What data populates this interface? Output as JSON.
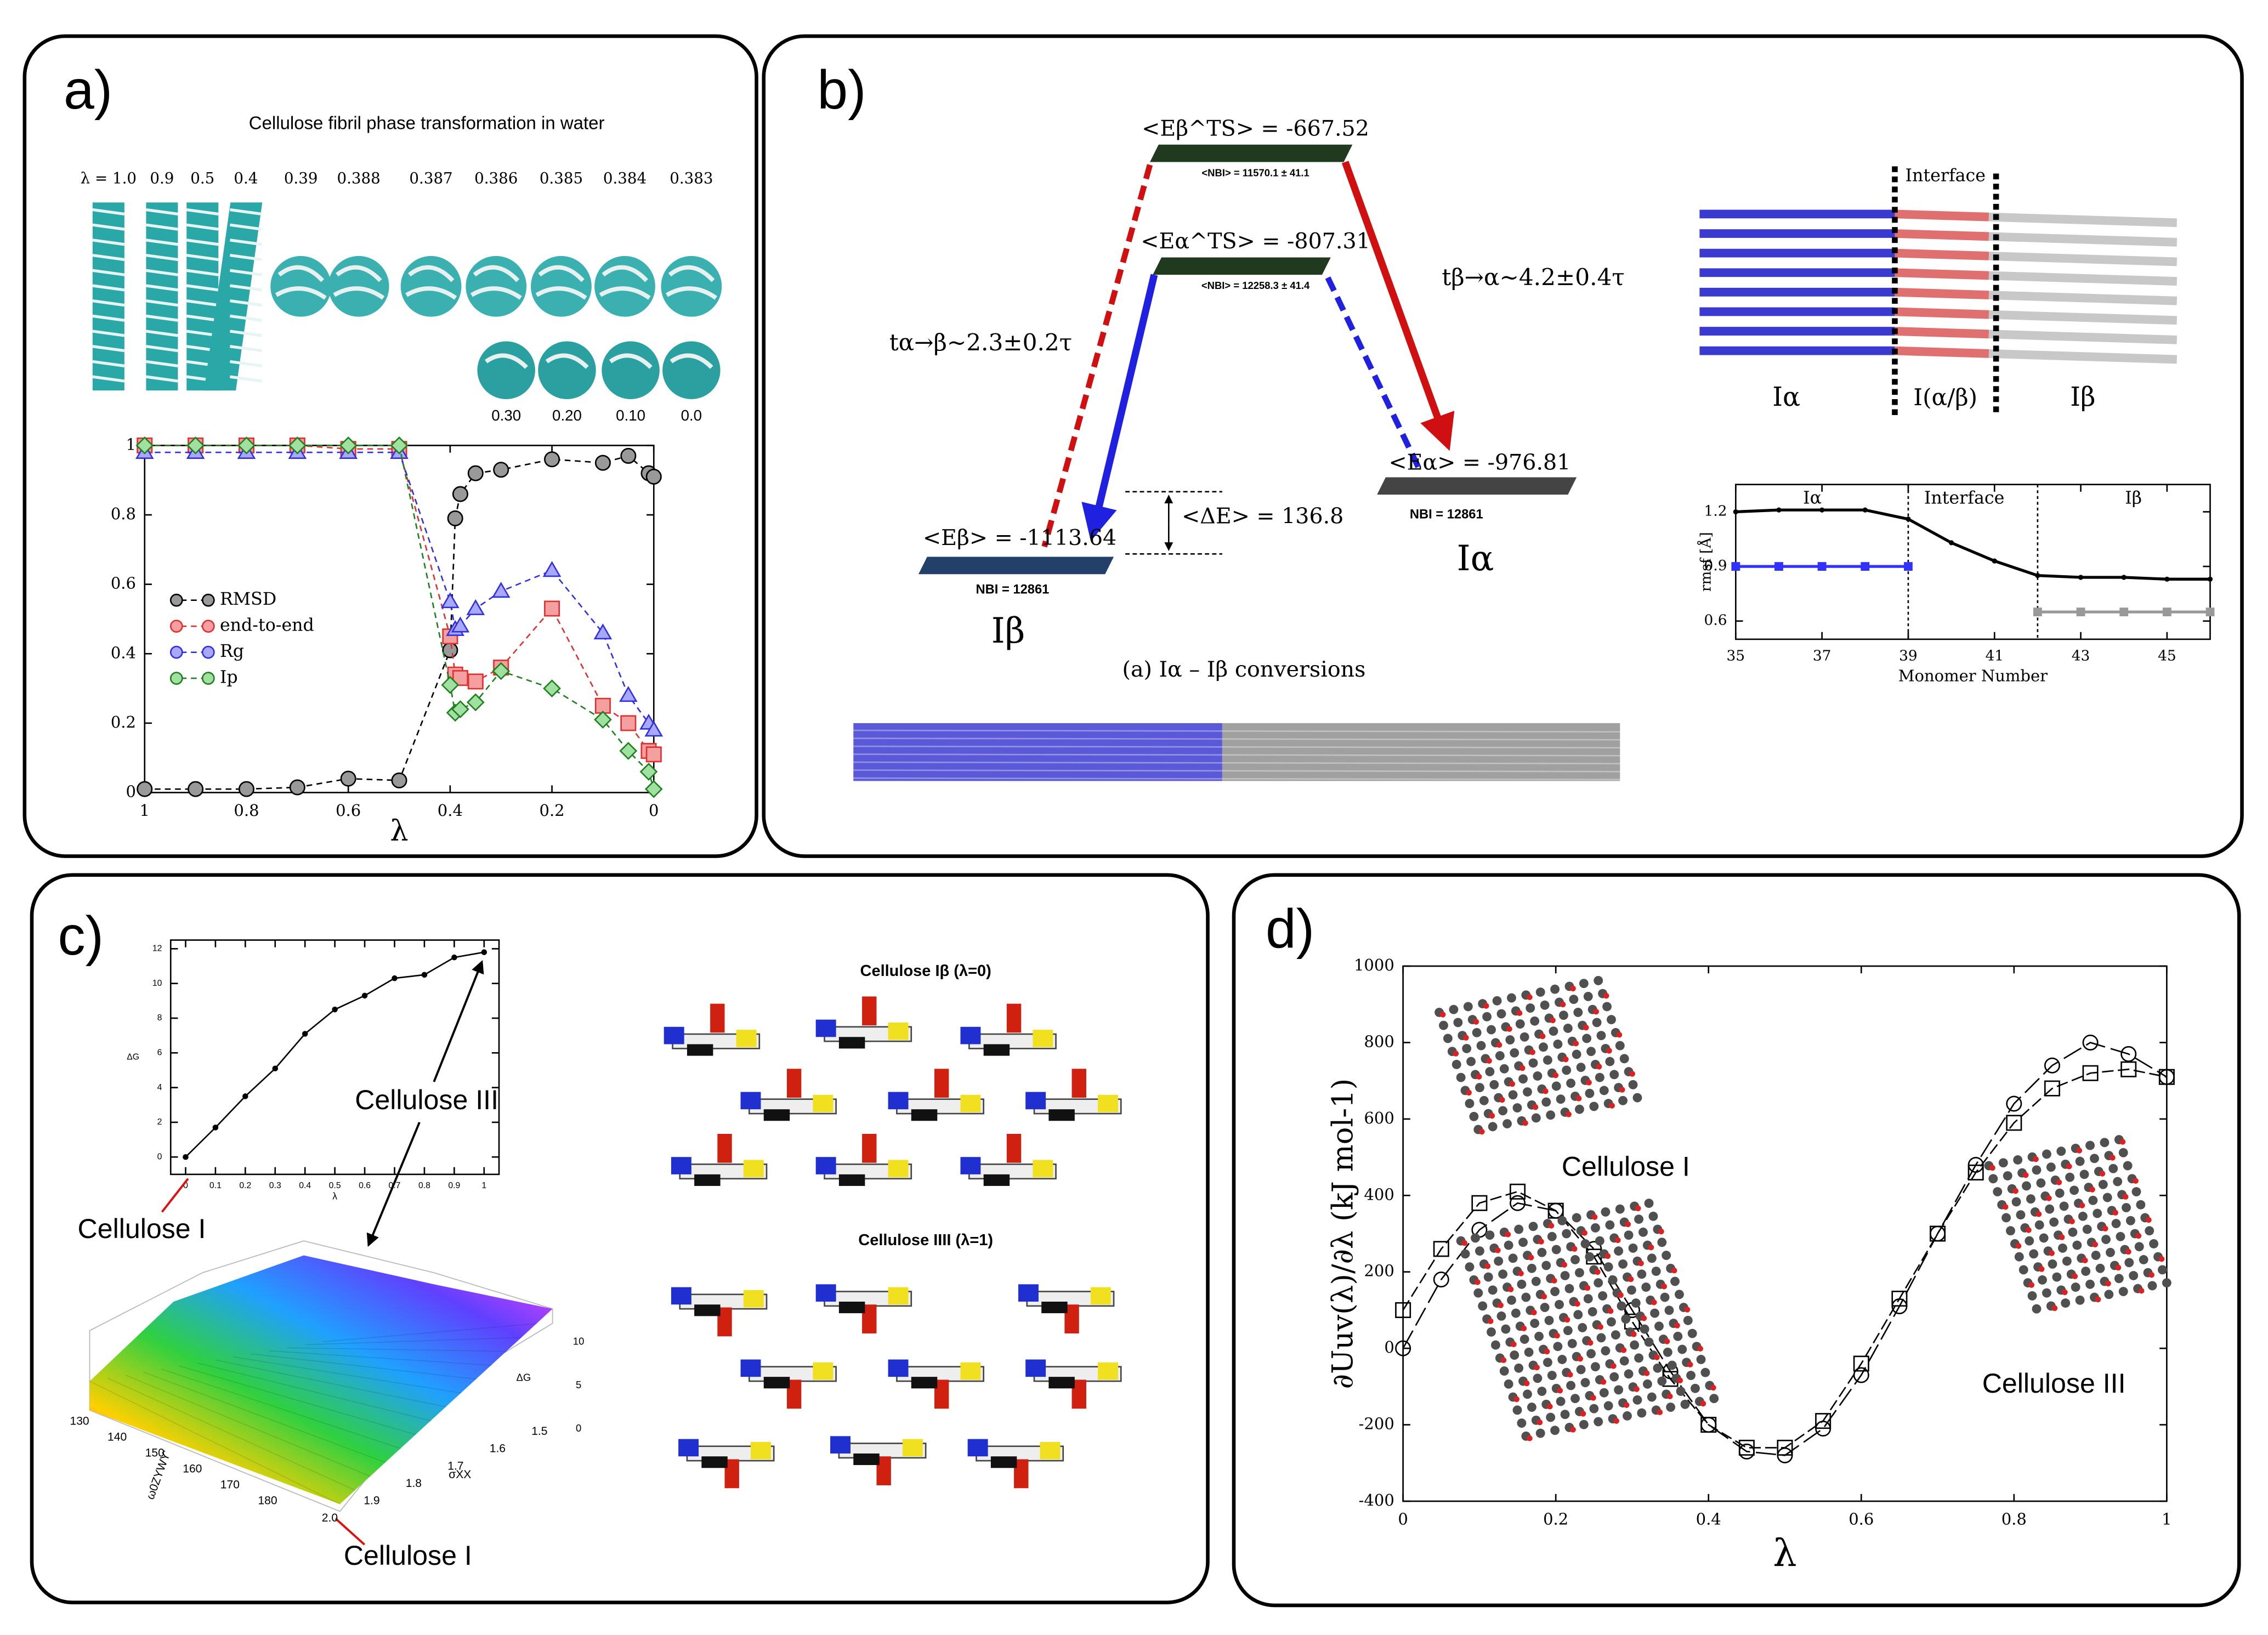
{
  "panels": [
    "a)",
    "b)",
    "c)",
    "d)"
  ],
  "fibril_images": {
    "title": "Cellulose fibril phase transformation in water",
    "lambdas": [
      "λ = 1.0",
      "0.9",
      "0.5",
      "0.4",
      "0.39",
      "0.388",
      "0.387",
      "0.386",
      "0.385",
      "0.384",
      "0.383"
    ],
    "lambdas_lower": [
      "0.30",
      "0.20",
      "0.10",
      "0.0"
    ]
  },
  "energy_diagram": {
    "ts_beta": "<Eβ^TS> = -667.52",
    "ts_beta_nbi": "<NBI> = 11570.1 ± 41.1",
    "ts_alpha": "<Eα^TS> = -807.31",
    "ts_alpha_nbi": "<NBI> = 12258.3 ± 41.4",
    "beta": "<Eβ> = -1113.64",
    "beta_nbi": "NBI = 12861",
    "beta_name": "Iβ",
    "alpha": "<Eα> = -976.81",
    "alpha_nbi": "NBI = 12861",
    "alpha_name": "Iα",
    "delta": "<ΔE> = 136.8",
    "t_ab": "tα→β~2.3±0.2τ",
    "t_ba": "tβ→α~4.2±0.4τ",
    "caption": "(a) Iα – Iβ conversions",
    "interface": "Interface",
    "region_alpha": "Iα",
    "region_mid": "I(α/β)",
    "region_beta": "Iβ"
  },
  "surface": {
    "z_label": "ΔG",
    "x_label": "σXX",
    "y_label": "ω0ZYWY'",
    "x_ticks": [
      "2.0",
      "1.9",
      "1.8",
      "1.7",
      "1.6",
      "1.5"
    ],
    "y_ticks": [
      "130",
      "140",
      "150",
      "160",
      "170",
      "180"
    ],
    "z_ticks": [
      "0",
      "5",
      "10"
    ]
  },
  "structures": {
    "top": "Cellulose Iβ (λ=0)",
    "bottom": "Cellulose IIII (λ=1)"
  },
  "chart_data": [
    {
      "type": "line",
      "xlabel": "λ",
      "xlim": [
        1,
        0
      ],
      "ylim": [
        0,
        1
      ],
      "xticks": [
        1,
        0.8,
        0.6,
        0.4,
        0.2,
        0
      ],
      "yticks": [
        0,
        0.2,
        0.4,
        0.6,
        0.8,
        1
      ],
      "x": [
        1,
        0.9,
        0.8,
        0.7,
        0.6,
        0.5,
        0.4,
        0.39,
        0.38,
        0.35,
        0.3,
        0.2,
        0.1,
        0.05,
        0.01,
        0
      ],
      "series": [
        {
          "name": "RMSD",
          "color": "#999999",
          "line_color": "#000000",
          "marker": "circle",
          "values": [
            0.01,
            0.01,
            0.01,
            0.015,
            0.04,
            0.035,
            0.41,
            0.79,
            0.86,
            0.92,
            0.93,
            0.96,
            0.95,
            0.97,
            0.92,
            0.91
          ]
        },
        {
          "name": "end-to-end",
          "color": "#f4a0a0",
          "line_color": "#e03030",
          "marker": "square",
          "values": [
            1,
            1,
            1,
            1,
            0.99,
            0.99,
            0.45,
            0.34,
            0.33,
            0.32,
            0.36,
            0.53,
            0.25,
            0.2,
            0.12,
            0.11
          ]
        },
        {
          "name": "Rg",
          "color": "#a8a8ff",
          "line_color": "#3030e0",
          "marker": "triangle",
          "values": [
            0.98,
            0.98,
            0.98,
            0.98,
            0.98,
            0.98,
            0.55,
            0.47,
            0.48,
            0.53,
            0.58,
            0.64,
            0.46,
            0.28,
            0.2,
            0.18
          ]
        },
        {
          "name": "Ip",
          "color": "#a0e0a0",
          "line_color": "#208020",
          "marker": "diamond",
          "values": [
            1,
            1,
            1,
            1,
            1,
            1,
            0.31,
            0.23,
            0.24,
            0.26,
            0.35,
            0.3,
            0.21,
            0.12,
            0.06,
            0.01
          ]
        }
      ]
    },
    {
      "type": "line",
      "xlabel": "Monomer Number",
      "ylabel": "rmsf [Å]",
      "xlim": [
        35,
        46
      ],
      "ylim": [
        0.5,
        1.35
      ],
      "xticks": [
        35,
        37,
        39,
        41,
        43,
        45
      ],
      "yticks": [
        0.6,
        0.9,
        1.2
      ],
      "vlines": [
        39,
        42
      ],
      "annotations": [
        "Iα",
        "Interface",
        "Iβ"
      ],
      "series": [
        {
          "color": "#000000",
          "marker": "dot",
          "x": [
            35,
            36,
            37,
            38,
            39,
            40,
            41,
            42,
            43,
            44,
            45,
            46
          ],
          "values": [
            1.2,
            1.21,
            1.21,
            1.21,
            1.16,
            1.03,
            0.93,
            0.85,
            0.84,
            0.84,
            0.83,
            0.83
          ]
        },
        {
          "color": "#3030ff",
          "marker": "square",
          "x": [
            35,
            36,
            37,
            38,
            39
          ],
          "values": [
            0.9,
            0.9,
            0.9,
            0.9,
            0.9
          ]
        },
        {
          "color": "#999999",
          "marker": "square",
          "x": [
            42,
            43,
            44,
            45,
            46
          ],
          "values": [
            0.65,
            0.65,
            0.65,
            0.65,
            0.65
          ]
        }
      ]
    },
    {
      "type": "line",
      "xlabel": "λ",
      "ylabel": "ΔG",
      "xlim": [
        -0.05,
        1.05
      ],
      "ylim": [
        -1,
        12.5
      ],
      "xticks": [
        0,
        0.1,
        0.2,
        0.3,
        0.4,
        0.5,
        0.6,
        0.7,
        0.8,
        0.9,
        1
      ],
      "yticks": [
        0,
        2,
        4,
        6,
        8,
        10,
        12
      ],
      "x": [
        0,
        0.1,
        0.2,
        0.3,
        0.4,
        0.5,
        0.6,
        0.7,
        0.8,
        0.9,
        1
      ],
      "annotations": [
        "Cellulose III",
        "Cellulose I",
        "Cellulose I"
      ],
      "series": [
        {
          "color": "#000000",
          "marker": "dot",
          "values": [
            0,
            1.7,
            3.5,
            5.1,
            7.1,
            8.5,
            9.3,
            10.3,
            10.5,
            11.5,
            11.8
          ]
        }
      ]
    },
    {
      "type": "line",
      "xlabel": "λ",
      "ylabel": "∂Uuv(λ)/∂λ (kJ mol-1)",
      "xlim": [
        0,
        1
      ],
      "ylim": [
        -400,
        1000
      ],
      "xticks": [
        0,
        0.2,
        0.4,
        0.6,
        0.8,
        1
      ],
      "yticks": [
        -400,
        -200,
        0,
        200,
        400,
        600,
        800,
        1000
      ],
      "x": [
        0,
        0.05,
        0.1,
        0.15,
        0.2,
        0.25,
        0.3,
        0.35,
        0.4,
        0.45,
        0.5,
        0.55,
        0.6,
        0.65,
        0.7,
        0.75,
        0.8,
        0.85,
        0.9,
        0.95,
        1
      ],
      "annotations": [
        "Cellulose I",
        "Cellulose III"
      ],
      "series": [
        {
          "color": "#000000",
          "marker": "open-circle",
          "dash": "14 4",
          "values": [
            0,
            180,
            310,
            380,
            360,
            260,
            100,
            -60,
            -200,
            -270,
            -280,
            -210,
            -70,
            110,
            300,
            480,
            640,
            740,
            800,
            770,
            710
          ]
        },
        {
          "color": "#000000",
          "marker": "open-square",
          "dash": "8 3",
          "values": [
            100,
            260,
            380,
            410,
            360,
            240,
            70,
            -80,
            -200,
            -260,
            -260,
            -190,
            -40,
            130,
            300,
            460,
            590,
            680,
            720,
            730,
            710
          ]
        }
      ]
    }
  ]
}
